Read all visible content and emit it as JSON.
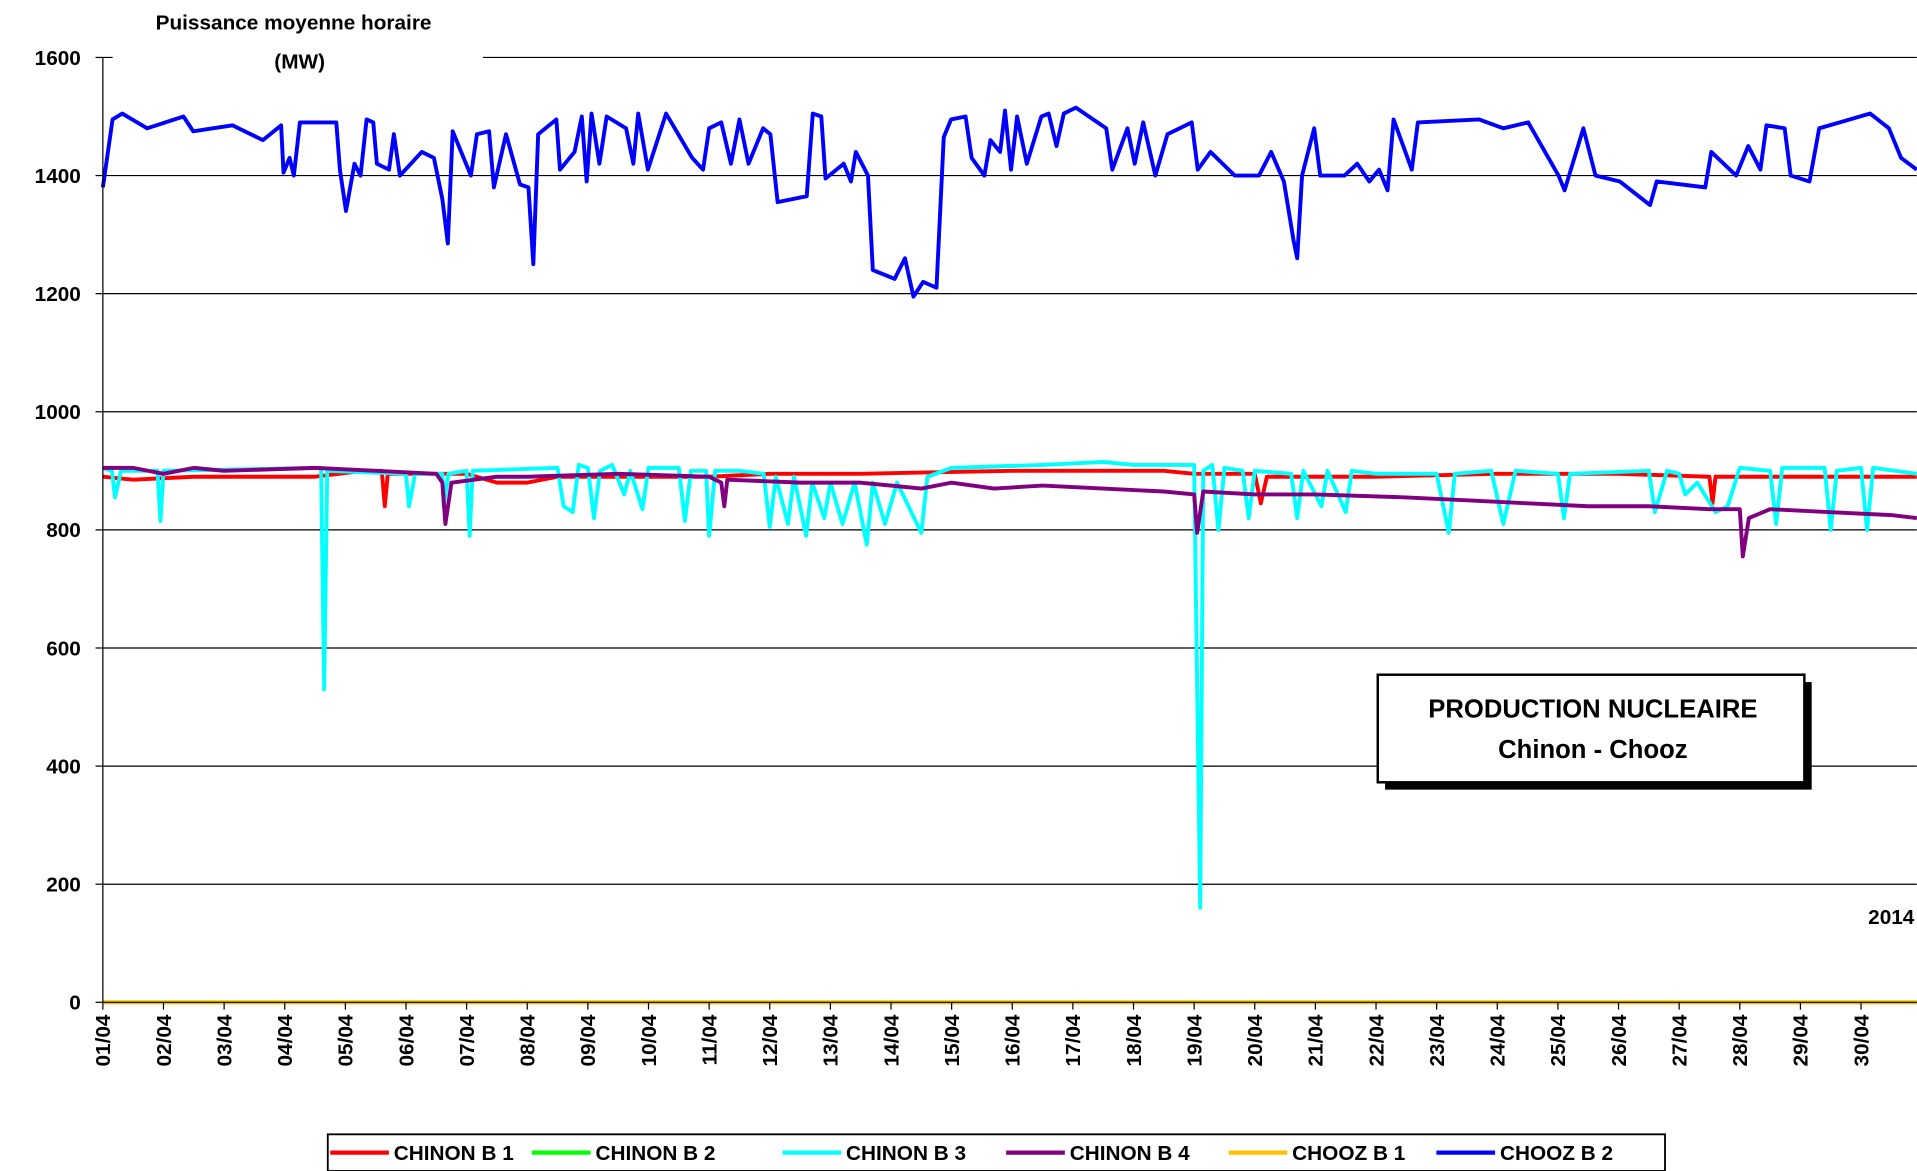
{
  "chart_data": {
    "type": "line",
    "ylabel_lines": [
      "Puissance moyenne horaire",
      "(MW)"
    ],
    "annotation": [
      "PRODUCTION NUCLEAIRE",
      "Chinon - Chooz"
    ],
    "year_note": "2014",
    "ylim": [
      0,
      1600
    ],
    "yticks": [
      0,
      200,
      400,
      600,
      800,
      1000,
      1200,
      1400,
      1600
    ],
    "xlim": [
      0,
      29.92
    ],
    "xticks": [
      {
        "value": 0,
        "label": "01/04"
      },
      {
        "value": 1,
        "label": "02/04"
      },
      {
        "value": 2,
        "label": "03/04"
      },
      {
        "value": 3,
        "label": "04/04"
      },
      {
        "value": 4,
        "label": "05/04"
      },
      {
        "value": 5,
        "label": "06/04"
      },
      {
        "value": 6,
        "label": "07/04"
      },
      {
        "value": 7,
        "label": "08/04"
      },
      {
        "value": 8,
        "label": "09/04"
      },
      {
        "value": 9,
        "label": "10/04"
      },
      {
        "value": 10,
        "label": "11/04"
      },
      {
        "value": 11,
        "label": "12/04"
      },
      {
        "value": 12,
        "label": "13/04"
      },
      {
        "value": 13,
        "label": "14/04"
      },
      {
        "value": 14,
        "label": "15/04"
      },
      {
        "value": 15,
        "label": "16/04"
      },
      {
        "value": 16,
        "label": "17/04"
      },
      {
        "value": 17,
        "label": "18/04"
      },
      {
        "value": 18,
        "label": "19/04"
      },
      {
        "value": 19,
        "label": "20/04"
      },
      {
        "value": 20,
        "label": "21/04"
      },
      {
        "value": 21,
        "label": "22/04"
      },
      {
        "value": 22,
        "label": "23/04"
      },
      {
        "value": 23,
        "label": "24/04"
      },
      {
        "value": 24,
        "label": "25/04"
      },
      {
        "value": 25,
        "label": "26/04"
      },
      {
        "value": 26,
        "label": "27/04"
      },
      {
        "value": 27,
        "label": "28/04"
      },
      {
        "value": 28,
        "label": "29/04"
      },
      {
        "value": 29,
        "label": "30/04"
      }
    ],
    "grid": true,
    "series": [
      {
        "name": "CHINON B 1",
        "color": "#ff0000",
        "x": [
          0,
          0.5,
          1.5,
          3.5,
          4.3,
          4.6,
          4.65,
          4.7,
          6.0,
          6.5,
          7.0,
          7.5,
          10.0,
          11.0,
          12.5,
          15.0,
          17.5,
          18.0,
          19.0,
          19.1,
          19.2,
          21.0,
          23.0,
          25.0,
          26.5,
          26.55,
          26.6,
          29.92
        ],
        "values": [
          890,
          885,
          890,
          890,
          900,
          900,
          840,
          895,
          895,
          880,
          880,
          890,
          890,
          895,
          895,
          900,
          900,
          895,
          895,
          845,
          890,
          890,
          895,
          895,
          890,
          845,
          890,
          890
        ]
      },
      {
        "name": "CHINON B 2",
        "color": "#00ff00",
        "x": [
          0,
          29.92
        ],
        "values": [
          0,
          0
        ]
      },
      {
        "name": "CHINON B 3",
        "color": "#00ffff",
        "x": [
          0,
          0.15,
          0.2,
          0.3,
          0.9,
          0.95,
          1.0,
          3.6,
          3.65,
          3.7,
          5.0,
          5.05,
          5.15,
          5.6,
          5.62,
          5.7,
          6.0,
          6.05,
          6.1,
          7.5,
          7.6,
          7.75,
          7.85,
          8.0,
          8.1,
          8.2,
          8.4,
          8.6,
          8.7,
          8.9,
          9.0,
          9.5,
          9.6,
          9.7,
          9.95,
          10.0,
          10.1,
          10.5,
          10.9,
          11.0,
          11.1,
          11.3,
          11.4,
          11.6,
          11.7,
          11.9,
          12.0,
          12.2,
          12.4,
          12.6,
          12.7,
          12.9,
          13.1,
          13.5,
          13.6,
          14.0,
          15.5,
          16.5,
          17.0,
          18.0,
          18.1,
          18.15,
          18.3,
          18.4,
          18.5,
          18.8,
          18.9,
          19.0,
          19.6,
          19.7,
          19.8,
          20.1,
          20.2,
          20.5,
          20.6,
          21.0,
          22.0,
          22.2,
          22.3,
          22.9,
          23.1,
          23.3,
          24.0,
          24.1,
          24.2,
          25.5,
          25.6,
          25.8,
          26.0,
          26.1,
          26.3,
          26.6,
          26.8,
          27.0,
          27.5,
          27.6,
          27.7,
          28.4,
          28.5,
          28.6,
          29.0,
          29.1,
          29.2,
          29.92
        ],
        "values": [
          905,
          900,
          855,
          900,
          900,
          815,
          900,
          905,
          530,
          900,
          895,
          840,
          895,
          895,
          840,
          895,
          900,
          790,
          900,
          905,
          840,
          830,
          910,
          905,
          820,
          900,
          910,
          860,
          900,
          835,
          905,
          905,
          815,
          900,
          900,
          790,
          900,
          900,
          895,
          805,
          890,
          810,
          890,
          790,
          880,
          820,
          880,
          810,
          880,
          775,
          880,
          810,
          880,
          795,
          890,
          905,
          910,
          915,
          910,
          910,
          160,
          900,
          910,
          800,
          905,
          900,
          820,
          900,
          895,
          820,
          900,
          840,
          900,
          830,
          900,
          895,
          895,
          795,
          895,
          900,
          810,
          900,
          895,
          820,
          895,
          900,
          830,
          900,
          895,
          860,
          880,
          830,
          840,
          905,
          900,
          810,
          905,
          905,
          800,
          900,
          905,
          800,
          905,
          895
        ]
      },
      {
        "name": "CHINON B 4",
        "color": "#800080",
        "x": [
          0,
          0.5,
          1.0,
          1.5,
          2.0,
          3.5,
          4.5,
          5.5,
          5.6,
          5.65,
          5.75,
          6.5,
          7.0,
          8.5,
          10.0,
          10.2,
          10.25,
          10.3,
          11.5,
          12.5,
          13.5,
          14.0,
          14.7,
          15.5,
          16.5,
          17.5,
          18.0,
          18.05,
          18.15,
          19.0,
          20.0,
          21.5,
          22.5,
          23.5,
          24.5,
          25.5,
          26.5,
          27.0,
          27.05,
          27.15,
          27.5,
          28.5,
          29.5,
          29.92
        ],
        "values": [
          905,
          905,
          895,
          905,
          900,
          905,
          900,
          895,
          880,
          810,
          880,
          890,
          890,
          895,
          890,
          880,
          840,
          885,
          880,
          880,
          870,
          880,
          870,
          875,
          870,
          865,
          860,
          795,
          865,
          860,
          860,
          855,
          850,
          845,
          840,
          840,
          835,
          835,
          755,
          820,
          835,
          830,
          825,
          820
        ]
      },
      {
        "name": "CHOOZ B 1",
        "color": "#ffc000",
        "x": [
          0,
          29.92
        ],
        "values": [
          0,
          0
        ]
      },
      {
        "name": "CHOOZ B 2",
        "color": "#0000ff",
        "x": [
          0,
          0.16,
          0.32,
          0.73,
          1.33,
          1.49,
          2.14,
          2.64,
          2.94,
          2.98,
          3.08,
          3.15,
          3.25,
          3.85,
          3.91,
          4.01,
          4.15,
          4.25,
          4.35,
          4.46,
          4.52,
          4.72,
          4.8,
          4.9,
          5.26,
          5.46,
          5.6,
          5.69,
          5.77,
          6.07,
          6.17,
          6.37,
          6.45,
          6.65,
          6.88,
          7.02,
          7.1,
          7.18,
          7.48,
          7.54,
          7.78,
          7.9,
          7.98,
          8.06,
          8.19,
          8.31,
          8.63,
          8.75,
          8.83,
          8.99,
          9.29,
          9.72,
          9.9,
          10.0,
          10.2,
          10.36,
          10.5,
          10.65,
          10.89,
          11.01,
          11.13,
          11.61,
          11.71,
          11.85,
          11.92,
          12.22,
          12.34,
          12.42,
          12.62,
          12.7,
          13.06,
          13.23,
          13.37,
          13.53,
          13.75,
          13.87,
          13.99,
          14.23,
          14.33,
          14.54,
          14.64,
          14.8,
          14.88,
          14.98,
          15.08,
          15.24,
          15.48,
          15.6,
          15.73,
          15.85,
          16.05,
          16.55,
          16.65,
          16.9,
          17.02,
          17.16,
          17.36,
          17.56,
          17.96,
          18.06,
          18.27,
          18.47,
          18.67,
          19.07,
          19.27,
          19.48,
          19.64,
          19.7,
          19.78,
          19.98,
          20.08,
          20.48,
          20.69,
          20.89,
          21.05,
          21.19,
          21.29,
          21.59,
          21.69,
          22.7,
          23.1,
          23.51,
          24.01,
          24.11,
          24.42,
          24.62,
          25.02,
          25.52,
          25.63,
          26.43,
          26.53,
          26.94,
          27.14,
          27.34,
          27.44,
          27.74,
          27.84,
          28.15,
          28.31,
          28.65,
          29.15,
          29.46,
          29.66,
          29.92
        ],
        "values": [
          1380,
          1495,
          1505,
          1480,
          1500,
          1475,
          1485,
          1460,
          1485,
          1405,
          1430,
          1400,
          1490,
          1490,
          1410,
          1340,
          1420,
          1400,
          1495,
          1490,
          1420,
          1410,
          1470,
          1400,
          1440,
          1430,
          1360,
          1285,
          1475,
          1400,
          1470,
          1475,
          1380,
          1470,
          1385,
          1380,
          1250,
          1470,
          1495,
          1410,
          1440,
          1500,
          1390,
          1505,
          1420,
          1500,
          1480,
          1420,
          1505,
          1410,
          1505,
          1430,
          1410,
          1480,
          1490,
          1420,
          1495,
          1420,
          1480,
          1470,
          1355,
          1365,
          1505,
          1500,
          1395,
          1420,
          1390,
          1440,
          1400,
          1240,
          1225,
          1260,
          1195,
          1220,
          1210,
          1465,
          1495,
          1500,
          1430,
          1400,
          1460,
          1440,
          1510,
          1410,
          1500,
          1420,
          1500,
          1505,
          1450,
          1505,
          1515,
          1480,
          1410,
          1480,
          1420,
          1490,
          1400,
          1470,
          1490,
          1410,
          1440,
          1420,
          1400,
          1400,
          1440,
          1390,
          1290,
          1260,
          1400,
          1480,
          1400,
          1400,
          1420,
          1390,
          1410,
          1375,
          1495,
          1410,
          1490,
          1495,
          1480,
          1490,
          1400,
          1375,
          1480,
          1400,
          1390,
          1350,
          1390,
          1380,
          1440,
          1400,
          1450,
          1410,
          1485,
          1480,
          1400,
          1390,
          1480,
          1490,
          1505,
          1480,
          1430,
          1410
        ]
      }
    ]
  }
}
